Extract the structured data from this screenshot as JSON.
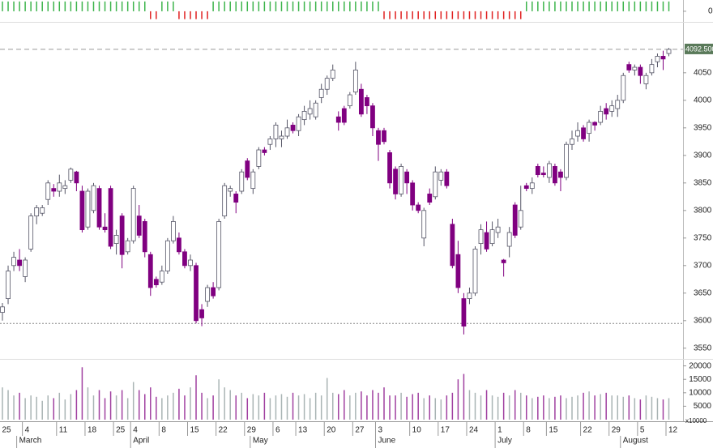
{
  "chart_data": {
    "type": "candlestick",
    "candles": [
      [
        3615,
        3632,
        3600,
        3625
      ],
      [
        3640,
        3700,
        3630,
        3690
      ],
      [
        3700,
        3725,
        3690,
        3715
      ],
      [
        3710,
        3730,
        3690,
        3700
      ],
      [
        3680,
        3715,
        3670,
        3710
      ],
      [
        3730,
        3795,
        3725,
        3790
      ],
      [
        3790,
        3810,
        3775,
        3805
      ],
      [
        3795,
        3810,
        3790,
        3805
      ],
      [
        3820,
        3855,
        3810,
        3850
      ],
      [
        3840,
        3848,
        3825,
        3835
      ],
      [
        3835,
        3865,
        3825,
        3850
      ],
      [
        3840,
        3855,
        3830,
        3845
      ],
      [
        3855,
        3878,
        3850,
        3875
      ],
      [
        3870,
        3872,
        3835,
        3850
      ],
      [
        3835,
        3845,
        3760,
        3765
      ],
      [
        3770,
        3840,
        3765,
        3835
      ],
      [
        3800,
        3850,
        3795,
        3845
      ],
      [
        3840,
        3845,
        3765,
        3770
      ],
      [
        3770,
        3795,
        3760,
        3765
      ],
      [
        3840,
        3845,
        3730,
        3735
      ],
      [
        3740,
        3765,
        3720,
        3755
      ],
      [
        3790,
        3795,
        3695,
        3720
      ],
      [
        3725,
        3750,
        3720,
        3745
      ],
      [
        3745,
        3845,
        3740,
        3840
      ],
      [
        3790,
        3810,
        3750,
        3755
      ],
      [
        3780,
        3785,
        3715,
        3725
      ],
      [
        3720,
        3725,
        3645,
        3660
      ],
      [
        3675,
        3680,
        3660,
        3665
      ],
      [
        3670,
        3700,
        3665,
        3690
      ],
      [
        3690,
        3750,
        3685,
        3745
      ],
      [
        3745,
        3790,
        3740,
        3780
      ],
      [
        3750,
        3760,
        3720,
        3725
      ],
      [
        3725,
        3730,
        3695,
        3700
      ],
      [
        3700,
        3720,
        3690,
        3710
      ],
      [
        3700,
        3705,
        3595,
        3600
      ],
      [
        3620,
        3630,
        3590,
        3605
      ],
      [
        3635,
        3665,
        3625,
        3660
      ],
      [
        3660,
        3670,
        3640,
        3645
      ],
      [
        3660,
        3785,
        3655,
        3780
      ],
      [
        3790,
        3850,
        3785,
        3845
      ],
      [
        3835,
        3845,
        3825,
        3840
      ],
      [
        3830,
        3835,
        3795,
        3815
      ],
      [
        3835,
        3875,
        3830,
        3870
      ],
      [
        3890,
        3895,
        3855,
        3860
      ],
      [
        3840,
        3875,
        3830,
        3870
      ],
      [
        3880,
        3915,
        3875,
        3910
      ],
      [
        3910,
        3915,
        3900,
        3905
      ],
      [
        3920,
        3935,
        3910,
        3930
      ],
      [
        3930,
        3960,
        3915,
        3955
      ],
      [
        3930,
        3945,
        3915,
        3935
      ],
      [
        3935,
        3965,
        3930,
        3950
      ],
      [
        3955,
        3960,
        3940,
        3945
      ],
      [
        3945,
        3975,
        3935,
        3970
      ],
      [
        3965,
        3990,
        3955,
        3980
      ],
      [
        3975,
        4000,
        3965,
        3985
      ],
      [
        3970,
        4000,
        3965,
        3995
      ],
      [
        4005,
        4030,
        3995,
        4020
      ],
      [
        4020,
        4045,
        4010,
        4040
      ],
      [
        4040,
        4065,
        4035,
        4055
      ],
      [
        3970,
        3980,
        3945,
        3960
      ],
      [
        3985,
        3990,
        3955,
        3960
      ],
      [
        3990,
        4015,
        3985,
        4010
      ],
      [
        4015,
        4070,
        4010,
        4055
      ],
      [
        4020,
        4030,
        3970,
        3975
      ],
      [
        4005,
        4010,
        3975,
        3990
      ],
      [
        3990,
        3995,
        3935,
        3950
      ],
      [
        3945,
        3950,
        3890,
        3920
      ],
      [
        3945,
        3950,
        3920,
        3925
      ],
      [
        3905,
        3910,
        3840,
        3850
      ],
      [
        3875,
        3880,
        3820,
        3830
      ],
      [
        3830,
        3885,
        3825,
        3880
      ],
      [
        3870,
        3875,
        3830,
        3850
      ],
      [
        3850,
        3855,
        3800,
        3810
      ],
      [
        3810,
        3815,
        3795,
        3800
      ],
      [
        3750,
        3805,
        3735,
        3800
      ],
      [
        3830,
        3840,
        3810,
        3815
      ],
      [
        3825,
        3880,
        3820,
        3870
      ],
      [
        3855,
        3875,
        3845,
        3870
      ],
      [
        3870,
        3875,
        3840,
        3845
      ],
      [
        3775,
        3785,
        3695,
        3700
      ],
      [
        3720,
        3745,
        3650,
        3660
      ],
      [
        3640,
        3650,
        3575,
        3590
      ],
      [
        3640,
        3660,
        3630,
        3650
      ],
      [
        3650,
        3735,
        3645,
        3730
      ],
      [
        3740,
        3775,
        3720,
        3765
      ],
      [
        3760,
        3780,
        3725,
        3730
      ],
      [
        3740,
        3780,
        3735,
        3765
      ],
      [
        3760,
        3785,
        3750,
        3770
      ],
      [
        3710,
        3712,
        3680,
        3705
      ],
      [
        3735,
        3770,
        3715,
        3760
      ],
      [
        3810,
        3815,
        3750,
        3755
      ],
      [
        3770,
        3845,
        3765,
        3800
      ],
      [
        3845,
        3850,
        3835,
        3840
      ],
      [
        3840,
        3860,
        3830,
        3850
      ],
      [
        3880,
        3885,
        3860,
        3865
      ],
      [
        3868,
        3880,
        3860,
        3865
      ],
      [
        3860,
        3890,
        3850,
        3885
      ],
      [
        3880,
        3885,
        3845,
        3850
      ],
      [
        3870,
        3875,
        3835,
        3860
      ],
      [
        3860,
        3925,
        3855,
        3920
      ],
      [
        3920,
        3945,
        3910,
        3930
      ],
      [
        3935,
        3960,
        3925,
        3945
      ],
      [
        3950,
        3955,
        3925,
        3930
      ],
      [
        3940,
        3965,
        3925,
        3960
      ],
      [
        3960,
        3962,
        3945,
        3955
      ],
      [
        3960,
        3990,
        3955,
        3980
      ],
      [
        3985,
        3995,
        3965,
        3975
      ],
      [
        3980,
        4000,
        3970,
        3990
      ],
      [
        3985,
        4010,
        3970,
        4000
      ],
      [
        4000,
        4050,
        3995,
        4045
      ],
      [
        4065,
        4070,
        4050,
        4055
      ],
      [
        4055,
        4065,
        4045,
        4060
      ],
      [
        4060,
        4065,
        4030,
        4045
      ],
      [
        4030,
        4050,
        4020,
        4045
      ],
      [
        4050,
        4075,
        4045,
        4065
      ],
      [
        4070,
        4085,
        4060,
        4080
      ],
      [
        4080,
        4090,
        4055,
        4075
      ],
      [
        4085,
        4095,
        4080,
        4092.5
      ]
    ],
    "ylim": [
      3535,
      4138
    ],
    "yticks": [
      3550,
      3600,
      3650,
      3700,
      3750,
      3800,
      3850,
      3900,
      3950,
      4000,
      4050
    ],
    "colors": {
      "up": "#ffffff",
      "down": "#800080",
      "up_volume": "#a9b4b4",
      "down_volume": "#a040a0"
    },
    "last_price": {
      "value": 4092.5,
      "label": "4092.500"
    },
    "support_level": 3595,
    "volume": {
      "values": [
        12000,
        11000,
        9000,
        10000,
        8000,
        9000,
        8500,
        7000,
        9000,
        8000,
        10000,
        7500,
        9500,
        11000,
        19500,
        12000,
        9000,
        11000,
        8000,
        10500,
        9000,
        11000,
        8000,
        14000,
        11000,
        9500,
        12000,
        8500,
        8000,
        9000,
        10000,
        11500,
        9000,
        12000,
        16500,
        10000,
        8000,
        9000,
        15000,
        12000,
        11000,
        9000,
        10000,
        8000,
        9500,
        9000,
        10000,
        8000,
        9000,
        9500,
        8500,
        10000,
        9000,
        9500,
        8000,
        10000,
        9000,
        15500,
        10000,
        9500,
        11000,
        9000,
        10000,
        10500,
        9000,
        11000,
        10000,
        12000,
        9000,
        9000,
        10000,
        8500,
        9500,
        10000,
        8000,
        9000,
        8000,
        7500,
        9000,
        10000,
        15000,
        17000,
        11000,
        10000,
        9000,
        11000,
        9000,
        8500,
        10000,
        9000,
        11000,
        10000,
        9000,
        8000,
        8500,
        9000,
        8000,
        8500,
        9000,
        8000,
        8500,
        9000,
        10000,
        10500,
        9000,
        9500,
        10000,
        9000,
        9000,
        8500,
        9000,
        8000,
        7500,
        9000,
        8500,
        8000,
        7500,
        8000
      ],
      "ylim": [
        0,
        22000
      ],
      "yticks": [
        5000,
        10000,
        15000,
        20000
      ],
      "unit_label": "x10000"
    },
    "indicator": {
      "values": [
        1,
        1,
        1,
        1,
        1,
        1,
        1,
        1,
        1,
        1,
        1,
        1,
        1,
        1,
        1,
        1,
        1,
        1,
        1,
        1,
        1,
        1,
        1,
        1,
        1,
        1,
        -0.8,
        -0.8,
        1,
        1,
        1,
        -0.8,
        -0.8,
        -0.8,
        -0.8,
        -0.8,
        -0.8,
        1,
        1,
        1,
        1,
        1,
        1,
        1,
        1,
        1,
        1,
        1,
        1,
        1,
        1,
        1,
        1,
        1,
        1,
        1,
        1,
        1,
        1,
        1,
        1,
        1,
        1,
        1,
        1,
        1,
        1,
        -0.8,
        -0.8,
        -0.8,
        -0.8,
        -0.8,
        -0.8,
        -0.8,
        -0.8,
        -0.8,
        -0.8,
        -0.8,
        -0.8,
        -0.8,
        -0.8,
        -0.8,
        -0.8,
        -0.8,
        -0.8,
        -0.8,
        -0.8,
        -0.8,
        -0.8,
        -0.8,
        -0.8,
        -0.8,
        1,
        1,
        1,
        1,
        1,
        1,
        1,
        1,
        1,
        1,
        1,
        1,
        1,
        1,
        1,
        1,
        1,
        1,
        1,
        1,
        1,
        1,
        1,
        1,
        1,
        1,
        1
      ],
      "ylim": [
        -1,
        1.15
      ],
      "yticks": [
        0
      ],
      "up_color": "#3cb44b",
      "down_color": "#e02020"
    },
    "xticks": [
      {
        "value": 0,
        "label": "25"
      },
      {
        "value": 4,
        "label": "4"
      },
      {
        "value": 10,
        "label": "11"
      },
      {
        "value": 15,
        "label": "18"
      },
      {
        "value": 20,
        "label": "25"
      },
      {
        "value": 23,
        "label": "4"
      },
      {
        "value": 28,
        "label": "8"
      },
      {
        "value": 33,
        "label": "15"
      },
      {
        "value": 38,
        "label": "22"
      },
      {
        "value": 43,
        "label": "29"
      },
      {
        "value": 48,
        "label": "6"
      },
      {
        "value": 52,
        "label": "13"
      },
      {
        "value": 57,
        "label": "20"
      },
      {
        "value": 62,
        "label": "27"
      },
      {
        "value": 66,
        "label": "3"
      },
      {
        "value": 72,
        "label": "10"
      },
      {
        "value": 77,
        "label": "17"
      },
      {
        "value": 82,
        "label": "24"
      },
      {
        "value": 87,
        "label": "1"
      },
      {
        "value": 92,
        "label": "8"
      },
      {
        "value": 96,
        "label": "15"
      },
      {
        "value": 102,
        "label": "22"
      },
      {
        "value": 107,
        "label": "29"
      },
      {
        "value": 112,
        "label": "5"
      },
      {
        "value": 117,
        "label": "12"
      }
    ],
    "months": [
      {
        "value": 3,
        "label": "March"
      },
      {
        "value": 23,
        "label": "April"
      },
      {
        "value": 44,
        "label": "May"
      },
      {
        "value": 66,
        "label": "June"
      },
      {
        "value": 87,
        "label": "July"
      },
      {
        "value": 109,
        "label": "August"
      }
    ]
  }
}
